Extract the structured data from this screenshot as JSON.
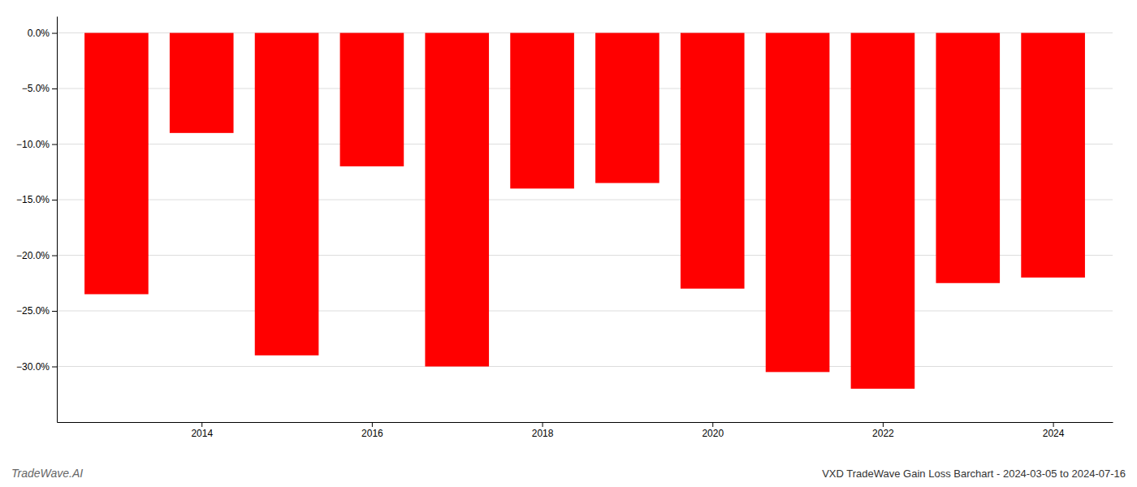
{
  "chart_data": {
    "type": "bar",
    "title": "VXD TradeWave Gain Loss Barchart - 2024-03-05 to 2024-07-16",
    "annotations": [
      "TradeWave.AI"
    ],
    "x": [
      2013,
      2014,
      2015,
      2016,
      2017,
      2018,
      2019,
      2020,
      2021,
      2022,
      2023,
      2024
    ],
    "values": [
      -23.5,
      -9.0,
      -29.0,
      -12.0,
      -30.0,
      -14.0,
      -13.5,
      -23.0,
      -30.5,
      -32.0,
      -22.5,
      -22.0
    ],
    "color": "#ff0000",
    "xlim": [
      2012.3,
      2024.7
    ],
    "xticks": [
      2014,
      2016,
      2018,
      2020,
      2022,
      2024
    ],
    "ylim": [
      -35,
      1.5
    ],
    "yticks": [
      {
        "value": 0.0,
        "label": "0.0%"
      },
      {
        "value": -5.0,
        "label": "−5.0%"
      },
      {
        "value": -10.0,
        "label": "−10.0%"
      },
      {
        "value": -15.0,
        "label": "−15.0%"
      },
      {
        "value": -20.0,
        "label": "−20.0%"
      },
      {
        "value": -25.0,
        "label": "−25.0%"
      },
      {
        "value": -30.0,
        "label": "−30.0%"
      }
    ],
    "grid": true
  }
}
